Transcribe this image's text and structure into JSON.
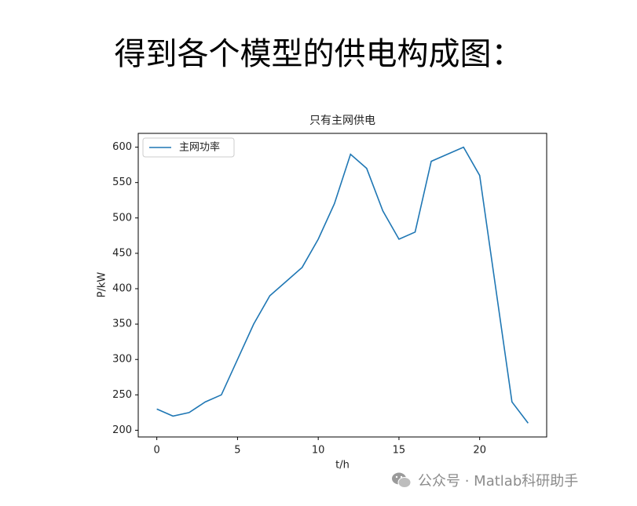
{
  "heading": "得到各个模型的供电构成图：",
  "watermark": "公众号 · Matlab科研助手",
  "chart_data": {
    "type": "line",
    "title": "只有主网供电",
    "x_label": "t/h",
    "y_label": "P/kW",
    "x": [
      0,
      1,
      2,
      3,
      4,
      5,
      6,
      7,
      8,
      9,
      10,
      11,
      12,
      13,
      14,
      15,
      16,
      17,
      18,
      19,
      20,
      21,
      22,
      23
    ],
    "series": [
      {
        "name": "主网功率",
        "color": "#1f77b4",
        "values": [
          230,
          220,
          225,
          240,
          250,
          300,
          350,
          390,
          410,
          430,
          470,
          520,
          590,
          570,
          510,
          470,
          480,
          580,
          590,
          600,
          560,
          400,
          240,
          210
        ]
      }
    ],
    "xlim": [
      -1.15,
      24.15
    ],
    "xticks": [
      0,
      5,
      10,
      15,
      20
    ],
    "ylim": [
      190.5,
      619.5
    ],
    "yticks": [
      200,
      250,
      300,
      350,
      400,
      450,
      500,
      550,
      600
    ],
    "legend": "upper left",
    "grid": false
  }
}
